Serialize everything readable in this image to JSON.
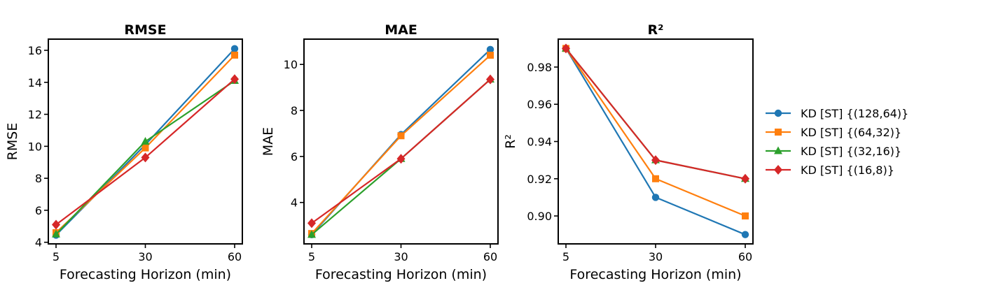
{
  "colors": {
    "s0": "#1f77b4",
    "s1": "#ff7f0e",
    "s2": "#2ca02c",
    "s3": "#d62728"
  },
  "legend": {
    "position": "right",
    "entries": [
      {
        "label": "KD [ST] {(128,64)}",
        "marker": "circle"
      },
      {
        "label": "KD [ST] {(64,32)}",
        "marker": "square"
      },
      {
        "label": "KD [ST] {(32,16)}",
        "marker": "triangle"
      },
      {
        "label": "KD [ST] {(16,8)}",
        "marker": "diamond"
      }
    ]
  },
  "chart_data": [
    {
      "type": "line",
      "title": "RMSE",
      "xlabel": "Forecasting Horizon (min)",
      "ylabel": "RMSE",
      "categories": [
        "5",
        "30",
        "60"
      ],
      "ylim": [
        3.9,
        16.7
      ],
      "yticks": [
        4,
        6,
        8,
        10,
        12,
        14,
        16
      ],
      "ytick_labels": [
        "4",
        "6",
        "8",
        "10",
        "12",
        "14",
        "16"
      ],
      "series": [
        {
          "name": "KD [ST] {(128,64)}",
          "values": [
            4.45,
            10.1,
            16.1
          ]
        },
        {
          "name": "KD [ST] {(64,32)}",
          "values": [
            4.6,
            9.9,
            15.7
          ]
        },
        {
          "name": "KD [ST] {(32,16)}",
          "values": [
            4.5,
            10.3,
            14.1
          ]
        },
        {
          "name": "KD [ST] {(16,8)}",
          "values": [
            5.1,
            9.3,
            14.2
          ]
        }
      ]
    },
    {
      "type": "line",
      "title": "MAE",
      "xlabel": "Forecasting Horizon (min)",
      "ylabel": "MAE",
      "categories": [
        "5",
        "30",
        "60"
      ],
      "ylim": [
        2.2,
        11.1
      ],
      "yticks": [
        4,
        6,
        8,
        10
      ],
      "ytick_labels": [
        "4",
        "6",
        "8",
        "10"
      ],
      "series": [
        {
          "name": "KD [ST] {(128,64)}",
          "values": [
            2.6,
            6.95,
            10.65
          ]
        },
        {
          "name": "KD [ST] {(64,32)}",
          "values": [
            2.65,
            6.9,
            10.4
          ]
        },
        {
          "name": "KD [ST] {(32,16)}",
          "values": [
            2.6,
            5.9,
            9.35
          ]
        },
        {
          "name": "KD [ST] {(16,8)}",
          "values": [
            3.1,
            5.9,
            9.35
          ]
        }
      ]
    },
    {
      "type": "line",
      "title": "R²",
      "xlabel": "Forecasting Horizon (min)",
      "ylabel": "R²",
      "categories": [
        "5",
        "30",
        "60"
      ],
      "ylim": [
        0.885,
        0.995
      ],
      "yticks": [
        0.9,
        0.92,
        0.94,
        0.96,
        0.98
      ],
      "ytick_labels": [
        "0.90",
        "0.92",
        "0.94",
        "0.96",
        "0.98"
      ],
      "series": [
        {
          "name": "KD [ST] {(128,64)}",
          "values": [
            0.99,
            0.91,
            0.89
          ]
        },
        {
          "name": "KD [ST] {(64,32)}",
          "values": [
            0.99,
            0.92,
            0.9
          ]
        },
        {
          "name": "KD [ST] {(32,16)}",
          "values": [
            0.99,
            0.93,
            0.92
          ]
        },
        {
          "name": "KD [ST] {(16,8)}",
          "values": [
            0.99,
            0.93,
            0.92
          ]
        }
      ]
    }
  ]
}
